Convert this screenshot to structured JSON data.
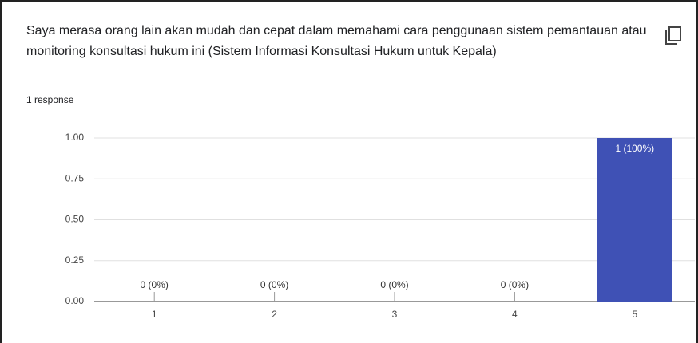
{
  "chart_data": {
    "type": "bar",
    "title": "Saya merasa orang lain akan mudah dan cepat dalam memahami cara penggunaan sistem pemantauan atau monitoring konsultasi hukum ini (Sistem Informasi Konsultasi Hukum untuk Kepala)",
    "subtitle": "1 response",
    "categories": [
      "1",
      "2",
      "3",
      "4",
      "5"
    ],
    "values": [
      0,
      0,
      0,
      0,
      1
    ],
    "value_labels": [
      "0 (0%)",
      "0 (0%)",
      "0 (0%)",
      "0 (0%)",
      "1 (100%)"
    ],
    "color": "#3f51b5",
    "ylim": [
      0,
      1
    ],
    "yticks": [
      {
        "value": 0,
        "label": "0.00"
      },
      {
        "value": 0.25,
        "label": "0.25"
      },
      {
        "value": 0.5,
        "label": "0.50"
      },
      {
        "value": 0.75,
        "label": "0.75"
      },
      {
        "value": 1,
        "label": "1.00"
      }
    ],
    "grid": true
  }
}
